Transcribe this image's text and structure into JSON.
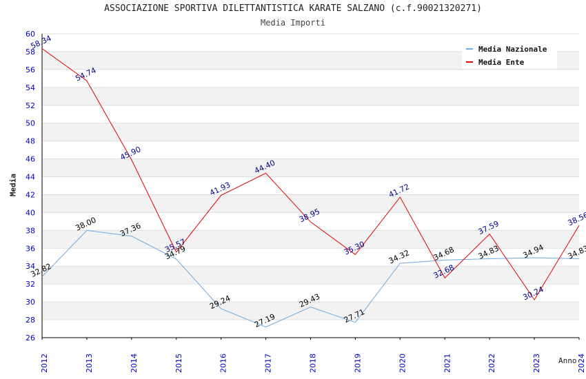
{
  "chart_data": {
    "type": "line",
    "title": "ASSOCIAZIONE SPORTIVA DILETTANTISTICA KARATE SALZANO (c.f.90021320271)",
    "subtitle": "Media Importi",
    "xlabel": "Anno",
    "ylabel": "Media",
    "ylim": [
      26,
      60
    ],
    "y_ticks": [
      "26",
      "28",
      "30",
      "32",
      "34",
      "36",
      "38",
      "40",
      "42",
      "44",
      "46",
      "48",
      "50",
      "52",
      "54",
      "56",
      "58",
      "60"
    ],
    "categories": [
      "2012",
      "2013",
      "2014",
      "2015",
      "2016",
      "2017",
      "2018",
      "2019",
      "2020",
      "2021",
      "2022",
      "2023",
      "2024"
    ],
    "grid": true,
    "legend_position": "top-right",
    "series": [
      {
        "name": "Media Nazionale",
        "color": "#6fa8dc",
        "label_color": "#000000",
        "values": [
          32.82,
          38.0,
          37.36,
          34.79,
          29.24,
          27.19,
          29.43,
          27.71,
          34.32,
          34.68,
          34.83,
          34.94,
          34.83
        ],
        "labels": [
          "32.82",
          "38.00",
          "37.36",
          "34.79",
          "29.24",
          "27.19",
          "29.43",
          "27.71",
          "34.32",
          "34.68",
          "34.83",
          "34.94",
          "34.83"
        ]
      },
      {
        "name": "Media Ente",
        "color": "#e00000",
        "label_color": "#00008b",
        "values": [
          58.34,
          54.74,
          45.9,
          35.57,
          41.93,
          44.4,
          38.95,
          35.3,
          41.72,
          32.68,
          37.59,
          30.24,
          38.56
        ],
        "labels": [
          "58.34",
          "54.74",
          "45.90",
          "35.57",
          "41.93",
          "44.40",
          "38.95",
          "35.30",
          "41.72",
          "32.68",
          "37.59",
          "30.24",
          "38.56"
        ]
      }
    ]
  }
}
